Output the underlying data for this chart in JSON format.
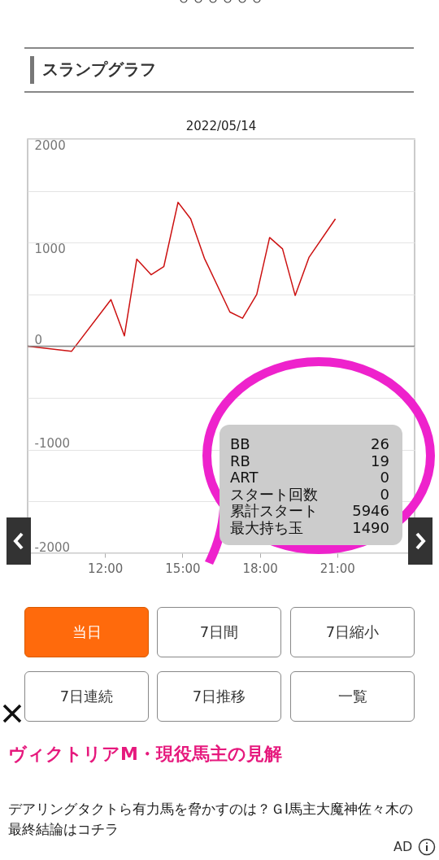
{
  "chart_data": {
    "type": "line",
    "title": "スランプグラフ",
    "subtitle": "2022/05/14",
    "x": [
      9.0,
      10.7,
      12.23,
      12.75,
      13.23,
      13.79,
      14.28,
      14.83,
      15.32,
      15.85,
      16.84,
      17.33,
      17.88,
      18.38,
      18.88,
      19.37,
      19.91,
      20.93
    ],
    "series": [
      {
        "color": "#cc1111",
        "values": [
          0,
          -50,
          450,
          100,
          840,
          690,
          770,
          1390,
          1230,
          850,
          330,
          270,
          500,
          1050,
          940,
          490,
          860,
          1230
        ]
      }
    ],
    "xlim": [
      9,
      24
    ],
    "xticks": [
      {
        "value": 12,
        "label": "12:00"
      },
      {
        "value": 15,
        "label": "15:00"
      },
      {
        "value": 18,
        "label": "18:00"
      },
      {
        "value": 21,
        "label": "21:00"
      }
    ],
    "ylim": [
      -2000,
      2000
    ],
    "yticks": [
      -2000,
      {
        "value": -1500,
        "label": null
      },
      -1000,
      {
        "value": -500,
        "label": null
      },
      0,
      {
        "value": 500,
        "label": null
      },
      1000,
      {
        "value": 1500,
        "label": null
      },
      2000
    ],
    "grid": "y",
    "ref_lines": [
      {
        "axis": "y",
        "value": 0,
        "color": "#888888"
      }
    ],
    "annotations": [
      "BB 26",
      "RB 19",
      "ART 0",
      "スタート回数 0",
      "累計スタート 5946",
      "最大持ち玉 1490",
      "当日",
      "7日間",
      "7日縮小",
      "7日連続",
      "7日推移",
      "一覧",
      "ヴィクトリアM・現役馬主の見解",
      "デアリングタクトら有力馬を脅かすのは？ＧⅠ馬主大魔神佐々木の最終結論はコチラ",
      "AD"
    ]
  }
}
